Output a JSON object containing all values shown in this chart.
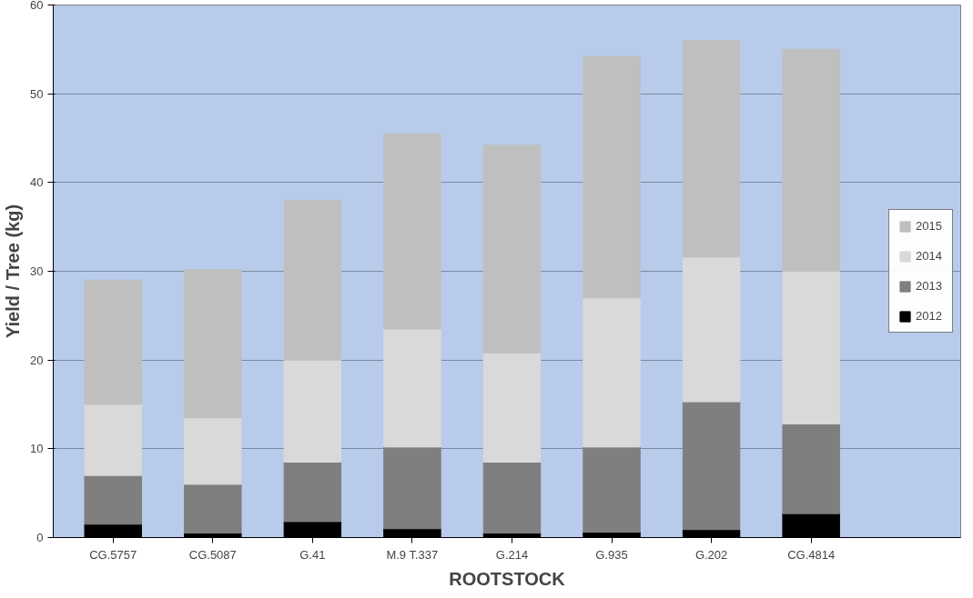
{
  "chart_data": {
    "type": "bar",
    "stacked": true,
    "xlabel": "ROOTSTOCK",
    "ylabel": "Yield / Tree (kg)",
    "categories": [
      "CG.5757",
      "CG.5087",
      "G.41",
      "M.9 T.337",
      "G.214",
      "G.935",
      "G.202",
      "CG.4814"
    ],
    "series": [
      {
        "name": "2012",
        "color": "#000000",
        "values": [
          1.5,
          0.5,
          1.8,
          1.0,
          0.5,
          0.6,
          0.9,
          2.7
        ]
      },
      {
        "name": "2013",
        "color": "#7f7f7f",
        "values": [
          5.5,
          5.5,
          6.7,
          9.2,
          8.0,
          9.6,
          14.4,
          10.1
        ]
      },
      {
        "name": "2014",
        "color": "#d9d9d9",
        "values": [
          8.0,
          7.5,
          11.5,
          13.3,
          12.3,
          16.8,
          16.3,
          17.2
        ]
      },
      {
        "name": "2015",
        "color": "#bfbfbf",
        "values": [
          14.0,
          16.7,
          18.0,
          22.0,
          23.4,
          27.2,
          24.4,
          25.0
        ]
      }
    ],
    "ylim": [
      0,
      60
    ],
    "yticks": [
      0,
      10,
      20,
      30,
      40,
      50,
      60
    ],
    "grid": "y",
    "legend": "right"
  }
}
